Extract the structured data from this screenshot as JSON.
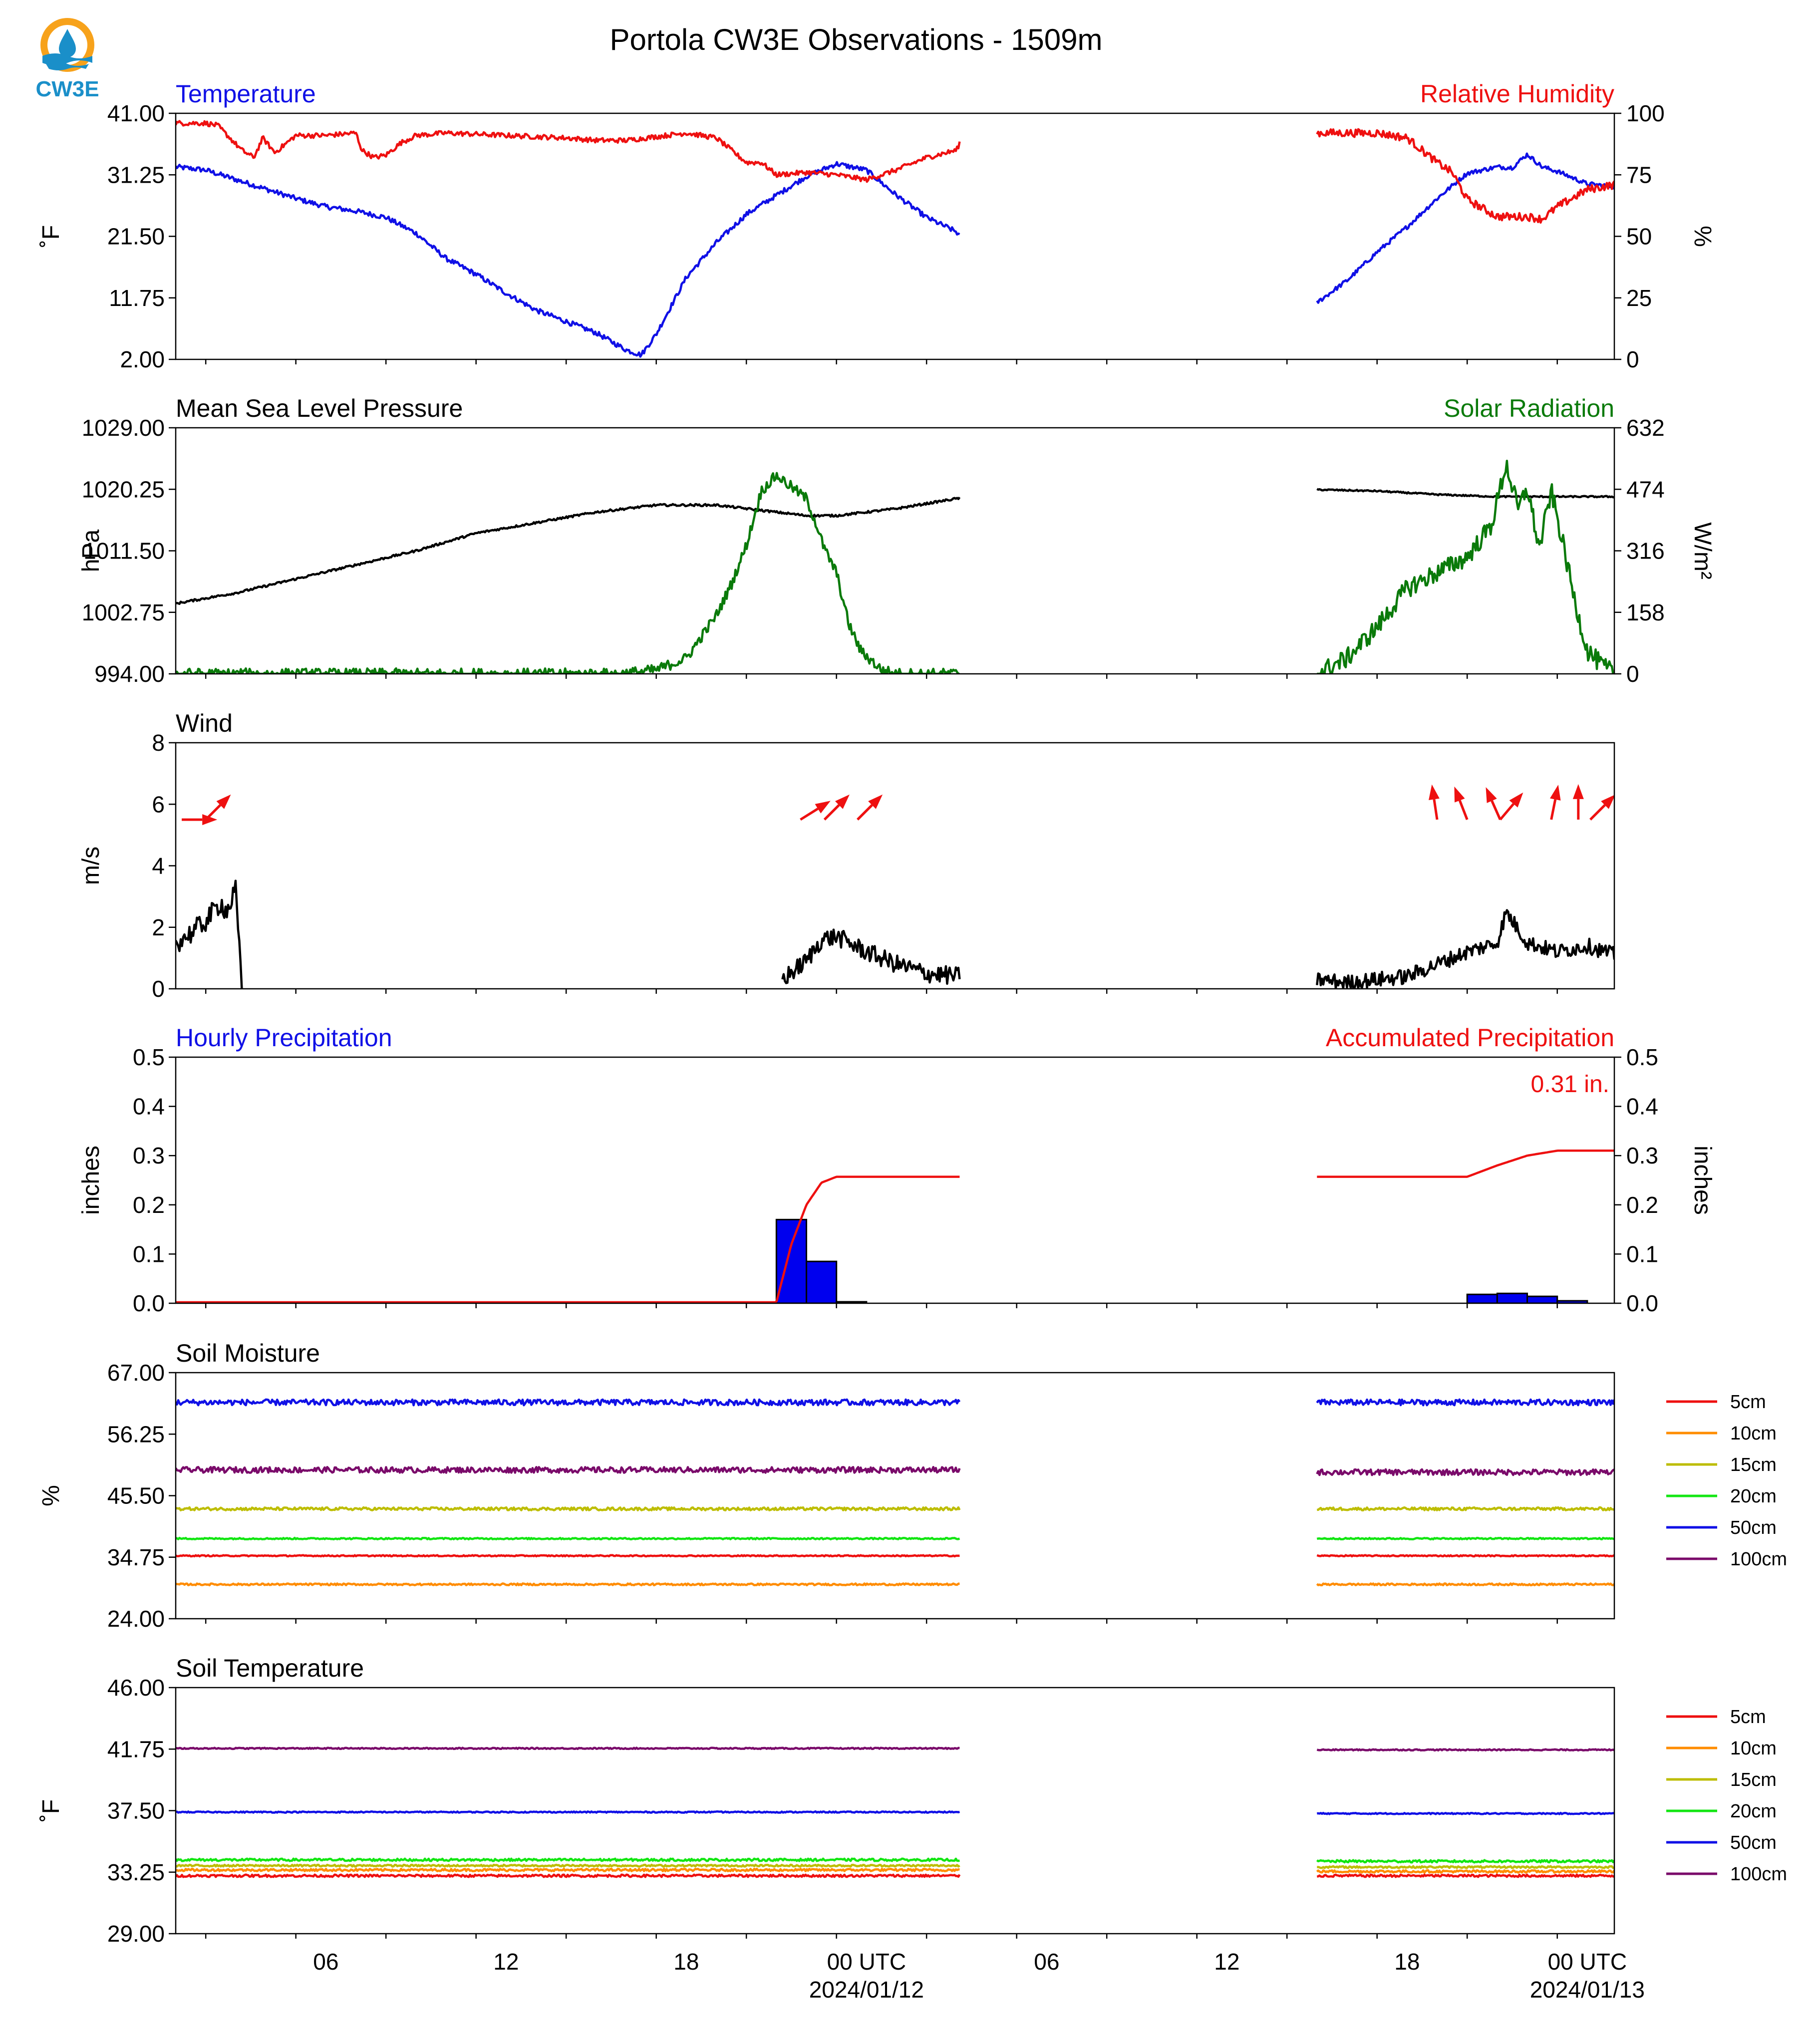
{
  "logo": {
    "text": "CW3E",
    "colors": {
      "orange": "#f7a21b",
      "blue": "#1a8fc9"
    }
  },
  "figure": {
    "title": "Portola CW3E Observations - 1509m"
  },
  "time_axis": {
    "ticks": [
      {
        "h": 6,
        "label": "06"
      },
      {
        "h": 12,
        "label": "12"
      },
      {
        "h": 18,
        "label": "18"
      },
      {
        "h": 24,
        "label": "00 UTC",
        "date": "2024/01/12"
      },
      {
        "h": 30,
        "label": "06"
      },
      {
        "h": 36,
        "label": "12"
      },
      {
        "h": 42,
        "label": "18"
      },
      {
        "h": 48,
        "label": "00 UTC",
        "date": "2024/01/13"
      }
    ],
    "range_hours": [
      1,
      48.9
    ]
  },
  "chart_data": [
    {
      "id": "temp_rh",
      "type": "line",
      "title_left": "Temperature",
      "title_right": "Relative Humidity",
      "title_left_color": "#1010e6",
      "title_right_color": "#ee1010",
      "ylabel": "˚F",
      "ylabel_right": "%",
      "ylim": [
        2,
        41
      ],
      "yticks": [
        "2.00",
        "11.75",
        "21.50",
        "31.25",
        "41.00"
      ],
      "ylim_right": [
        0,
        100
      ],
      "yticks_right": [
        "0",
        "25",
        "50",
        "75",
        "100"
      ],
      "series": [
        {
          "axis": "left",
          "color": "#1010e6",
          "x": [
            1,
            2,
            3,
            4,
            5,
            6,
            7,
            8,
            9,
            10,
            11,
            12,
            13,
            14,
            15,
            16,
            16.5,
            17,
            18,
            19,
            20,
            21,
            22,
            23,
            24,
            25,
            26,
            27,
            27.1
          ],
          "y": [
            32.5,
            32,
            30.5,
            29,
            27.5,
            26.2,
            25.5,
            24.5,
            22,
            18,
            15.5,
            12.5,
            9.8,
            8,
            6.2,
            3.5,
            2.7,
            6,
            15,
            20.5,
            25,
            28,
            31,
            33,
            32,
            28,
            24.5,
            22.2,
            21.5
          ],
          "noise": 0.4
        },
        {
          "axis": "left",
          "color": "#1010e6",
          "x": [
            39,
            40,
            41,
            42,
            43,
            44,
            45,
            45.5,
            46,
            46.5,
            47,
            48,
            48.9
          ],
          "y": [
            11,
            14.5,
            19,
            23,
            27.5,
            31.5,
            32.5,
            32.4,
            34.5,
            32.5,
            31.8,
            29.8,
            29.4
          ],
          "noise": 0.35
        },
        {
          "axis": "right",
          "color": "#ee1010",
          "x": [
            1,
            2,
            2.4,
            2.8,
            3.2,
            3.6,
            3.9,
            4.3,
            5,
            6,
            7,
            7.2,
            7.6,
            8,
            8.5,
            9,
            10,
            12,
            14,
            15,
            16,
            18,
            19,
            20,
            20.5,
            21,
            22,
            23,
            24,
            25,
            26,
            27,
            27.1
          ],
          "y": [
            96,
            96,
            95,
            90,
            85,
            82,
            90,
            84,
            91,
            91,
            92,
            85,
            82,
            83,
            88,
            91,
            92,
            91,
            90,
            89,
            89,
            92,
            90,
            80,
            80,
            75,
            76,
            75,
            73,
            77,
            82,
            85,
            88
          ],
          "noise": 1.0
        },
        {
          "axis": "right",
          "color": "#ee1010",
          "x": [
            39,
            40,
            41,
            42,
            43,
            43.5,
            44,
            45,
            46,
            46.5,
            47,
            48,
            48.9
          ],
          "y": [
            92,
            92,
            92,
            90,
            80,
            76,
            65,
            58,
            58,
            57,
            62,
            69,
            71
          ],
          "noise": 1.6
        }
      ]
    },
    {
      "id": "pressure_solar",
      "type": "line",
      "title_left": "Mean Sea Level Pressure",
      "title_right": "Solar Radiation",
      "title_left_color": "#000000",
      "title_right_color": "#0a7a0a",
      "ylabel": "hPa",
      "ylabel_right": "W/m²",
      "ylim": [
        994,
        1029
      ],
      "yticks": [
        "994.00",
        "1002.75",
        "1011.50",
        "1020.25",
        "1029.00"
      ],
      "ylim_right": [
        0,
        632
      ],
      "yticks_right": [
        "0",
        "158",
        "316",
        "474",
        "632"
      ],
      "series": [
        {
          "axis": "left",
          "color": "#000000",
          "x": [
            1,
            3,
            5,
            7,
            9,
            11,
            13,
            15,
            17,
            19,
            21,
            22,
            23,
            25,
            27.1
          ],
          "y": [
            1004,
            1005.5,
            1007.5,
            1009.5,
            1011.5,
            1014,
            1015.5,
            1017,
            1018,
            1018,
            1017,
            1016.5,
            1016.5,
            1017.5,
            1019
          ],
          "noise": 0.15
        },
        {
          "axis": "left",
          "color": "#000000",
          "x": [
            39,
            41,
            43,
            45,
            47,
            48.9
          ],
          "y": [
            1020.2,
            1020,
            1019.5,
            1019.2,
            1019.2,
            1019.2
          ],
          "noise": 0.1
        },
        {
          "axis": "right",
          "color": "#0a7a0a",
          "x": [
            1,
            15.8,
            17,
            18,
            19,
            19.5,
            20,
            20.5,
            21,
            21.5,
            22,
            22.3,
            22.6,
            23,
            23.4,
            23.8,
            24.5,
            25,
            25.5,
            27.1
          ],
          "y": [
            0,
            0,
            10,
            40,
            150,
            230,
            330,
            470,
            510,
            480,
            450,
            390,
            320,
            260,
            130,
            60,
            10,
            0,
            0,
            0
          ],
          "noise": 14
        },
        {
          "axis": "right",
          "color": "#0a7a0a",
          "x": [
            39,
            40,
            41,
            42,
            43,
            44,
            44.8,
            45.3,
            45.7,
            46,
            46.4,
            46.8,
            47.2,
            47.6,
            48,
            48.5,
            48.9
          ],
          "y": [
            0,
            40,
            120,
            220,
            260,
            300,
            380,
            540,
            420,
            480,
            320,
            470,
            330,
            180,
            60,
            20,
            0
          ],
          "noise": 25
        }
      ]
    },
    {
      "id": "wind",
      "type": "line",
      "title_left": "Wind",
      "title_left_color": "#000000",
      "ylabel": "m/s",
      "ylim": [
        0,
        8
      ],
      "yticks": [
        "0",
        "2",
        "4",
        "6",
        "8"
      ],
      "series": [
        {
          "axis": "left",
          "color": "#000000",
          "x": [
            1,
            1.5,
            2,
            2.5,
            2.7,
            3,
            3.1,
            3.2
          ],
          "y": [
            1.5,
            1.8,
            2.2,
            2.8,
            2.5,
            3.2,
            1.5,
            0
          ],
          "noise": 0.35
        },
        {
          "axis": "left",
          "color": "#000000",
          "x": [
            21.2,
            22,
            22.5,
            23,
            24,
            25,
            26,
            27.1
          ],
          "y": [
            0.3,
            0.9,
            1.6,
            1.7,
            1.2,
            0.8,
            0.5,
            0.4
          ],
          "noise": 0.3
        },
        {
          "axis": "left",
          "color": "#000000",
          "x": [
            39,
            40,
            41,
            42,
            43,
            44,
            45,
            45.3,
            46,
            47,
            48,
            48.9
          ],
          "y": [
            0.3,
            0.2,
            0.3,
            0.4,
            0.8,
            1.2,
            1.5,
            2.5,
            1.5,
            1.2,
            1.4,
            1.1
          ],
          "noise": 0.25
        }
      ],
      "arrows": {
        "color": "#ee1010",
        "y": 5.5,
        "scale": 0.62,
        "items": [
          {
            "x": 1.2,
            "u": 2.0,
            "v": 0
          },
          {
            "x": 2.0,
            "u": 1.4,
            "v": 1.4
          },
          {
            "x": 21.8,
            "u": 1.6,
            "v": 1.0
          },
          {
            "x": 22.6,
            "u": 1.3,
            "v": 1.3
          },
          {
            "x": 23.7,
            "u": 1.3,
            "v": 1.3
          },
          {
            "x": 43.0,
            "u": -0.3,
            "v": 2.0
          },
          {
            "x": 44.0,
            "u": -0.7,
            "v": 1.8
          },
          {
            "x": 45.1,
            "u": -0.8,
            "v": 1.8
          },
          {
            "x": 45.1,
            "u": 1.1,
            "v": 1.3
          },
          {
            "x": 46.8,
            "u": 0.4,
            "v": 2.0
          },
          {
            "x": 47.7,
            "u": 0,
            "v": 2.1
          },
          {
            "x": 48.1,
            "u": 1.3,
            "v": 1.3
          }
        ]
      }
    },
    {
      "id": "precip",
      "type": "bar",
      "title_left": "Hourly Precipitation",
      "title_right": "Accumulated Precipitation",
      "title_left_color": "#1010e6",
      "title_right_color": "#ee1010",
      "annotation": "0.31 in.",
      "ylabel": "inches",
      "ylabel_right": "inches",
      "ylim": [
        0,
        0.5
      ],
      "yticks": [
        "0.0",
        "0.1",
        "0.2",
        "0.3",
        "0.4",
        "0.5"
      ],
      "ylim_right": [
        0,
        0.5
      ],
      "yticks_right": [
        "0.0",
        "0.1",
        "0.2",
        "0.3",
        "0.4",
        "0.5"
      ],
      "bars": {
        "color": "#0000ee",
        "width_hours": 1,
        "x": [
          2,
          21,
          22,
          23,
          44,
          45,
          46,
          47
        ],
        "values": [
          0.002,
          0.17,
          0.085,
          0.003,
          0.018,
          0.02,
          0.014,
          0.005
        ]
      },
      "series": [
        {
          "axis": "right",
          "color": "#ee1010",
          "x": [
            1,
            21,
            21.5,
            22,
            22.5,
            23,
            24,
            27.1
          ],
          "y": [
            0.002,
            0.002,
            0.12,
            0.2,
            0.245,
            0.257,
            0.257,
            0.257
          ],
          "noise": 0
        },
        {
          "axis": "right",
          "color": "#ee1010",
          "x": [
            39,
            44,
            45,
            46,
            47,
            48.9
          ],
          "y": [
            0.257,
            0.257,
            0.28,
            0.3,
            0.31,
            0.31
          ],
          "noise": 0
        }
      ]
    },
    {
      "id": "soil_moisture",
      "type": "line",
      "title_left": "Soil Moisture",
      "title_left_color": "#000000",
      "ylabel": "%",
      "ylim": [
        24,
        67
      ],
      "yticks": [
        "24.00",
        "34.75",
        "45.50",
        "56.25",
        "67.00"
      ],
      "legend": [
        "5cm",
        "10cm",
        "15cm",
        "20cm",
        "50cm",
        "100cm"
      ],
      "colors": [
        "#ee1010",
        "#ff8c00",
        "#bdbd00",
        "#12e612",
        "#1010e6",
        "#7a0a6a"
      ],
      "series": [
        {
          "color": "#ee1010",
          "seg1": 35.0,
          "seg2": 35.0,
          "noise": 0.1
        },
        {
          "color": "#ff8c00",
          "seg1": 30.0,
          "seg2": 30.0,
          "noise": 0.15
        },
        {
          "color": "#bdbd00",
          "seg1": 43.2,
          "seg2": 43.2,
          "noise": 0.25
        },
        {
          "color": "#12e612",
          "seg1": 38.0,
          "seg2": 38.0,
          "noise": 0.12
        },
        {
          "color": "#1010e6",
          "seg1": 61.8,
          "seg2": 61.8,
          "noise": 0.5
        },
        {
          "color": "#7a0a6a",
          "seg1": 50.0,
          "seg2": 49.6,
          "noise": 0.5
        }
      ]
    },
    {
      "id": "soil_temperature",
      "type": "line",
      "title_left": "Soil Temperature",
      "title_left_color": "#000000",
      "ylabel": "˚F",
      "ylim": [
        29,
        46
      ],
      "yticks": [
        "29.00",
        "33.25",
        "37.50",
        "41.75",
        "46.00"
      ],
      "legend": [
        "5cm",
        "10cm",
        "15cm",
        "20cm",
        "50cm",
        "100cm"
      ],
      "colors": [
        "#ee1010",
        "#ff8c00",
        "#bdbd00",
        "#12e612",
        "#1010e6",
        "#7a0a6a"
      ],
      "series": [
        {
          "color": "#ee1010",
          "seg1": 33.0,
          "seg2": 33.0,
          "noise": 0.08
        },
        {
          "color": "#ff8c00",
          "seg1": 33.4,
          "seg2": 33.3,
          "noise": 0.08
        },
        {
          "color": "#bdbd00",
          "seg1": 33.7,
          "seg2": 33.6,
          "noise": 0.06
        },
        {
          "color": "#12e612",
          "seg1": 34.1,
          "seg2": 34.0,
          "noise": 0.08
        },
        {
          "color": "#1010e6",
          "seg1": 37.4,
          "seg2": 37.3,
          "noise": 0.04
        },
        {
          "color": "#7a0a6a",
          "seg1": 41.8,
          "seg2": 41.7,
          "noise": 0.04
        }
      ]
    }
  ]
}
